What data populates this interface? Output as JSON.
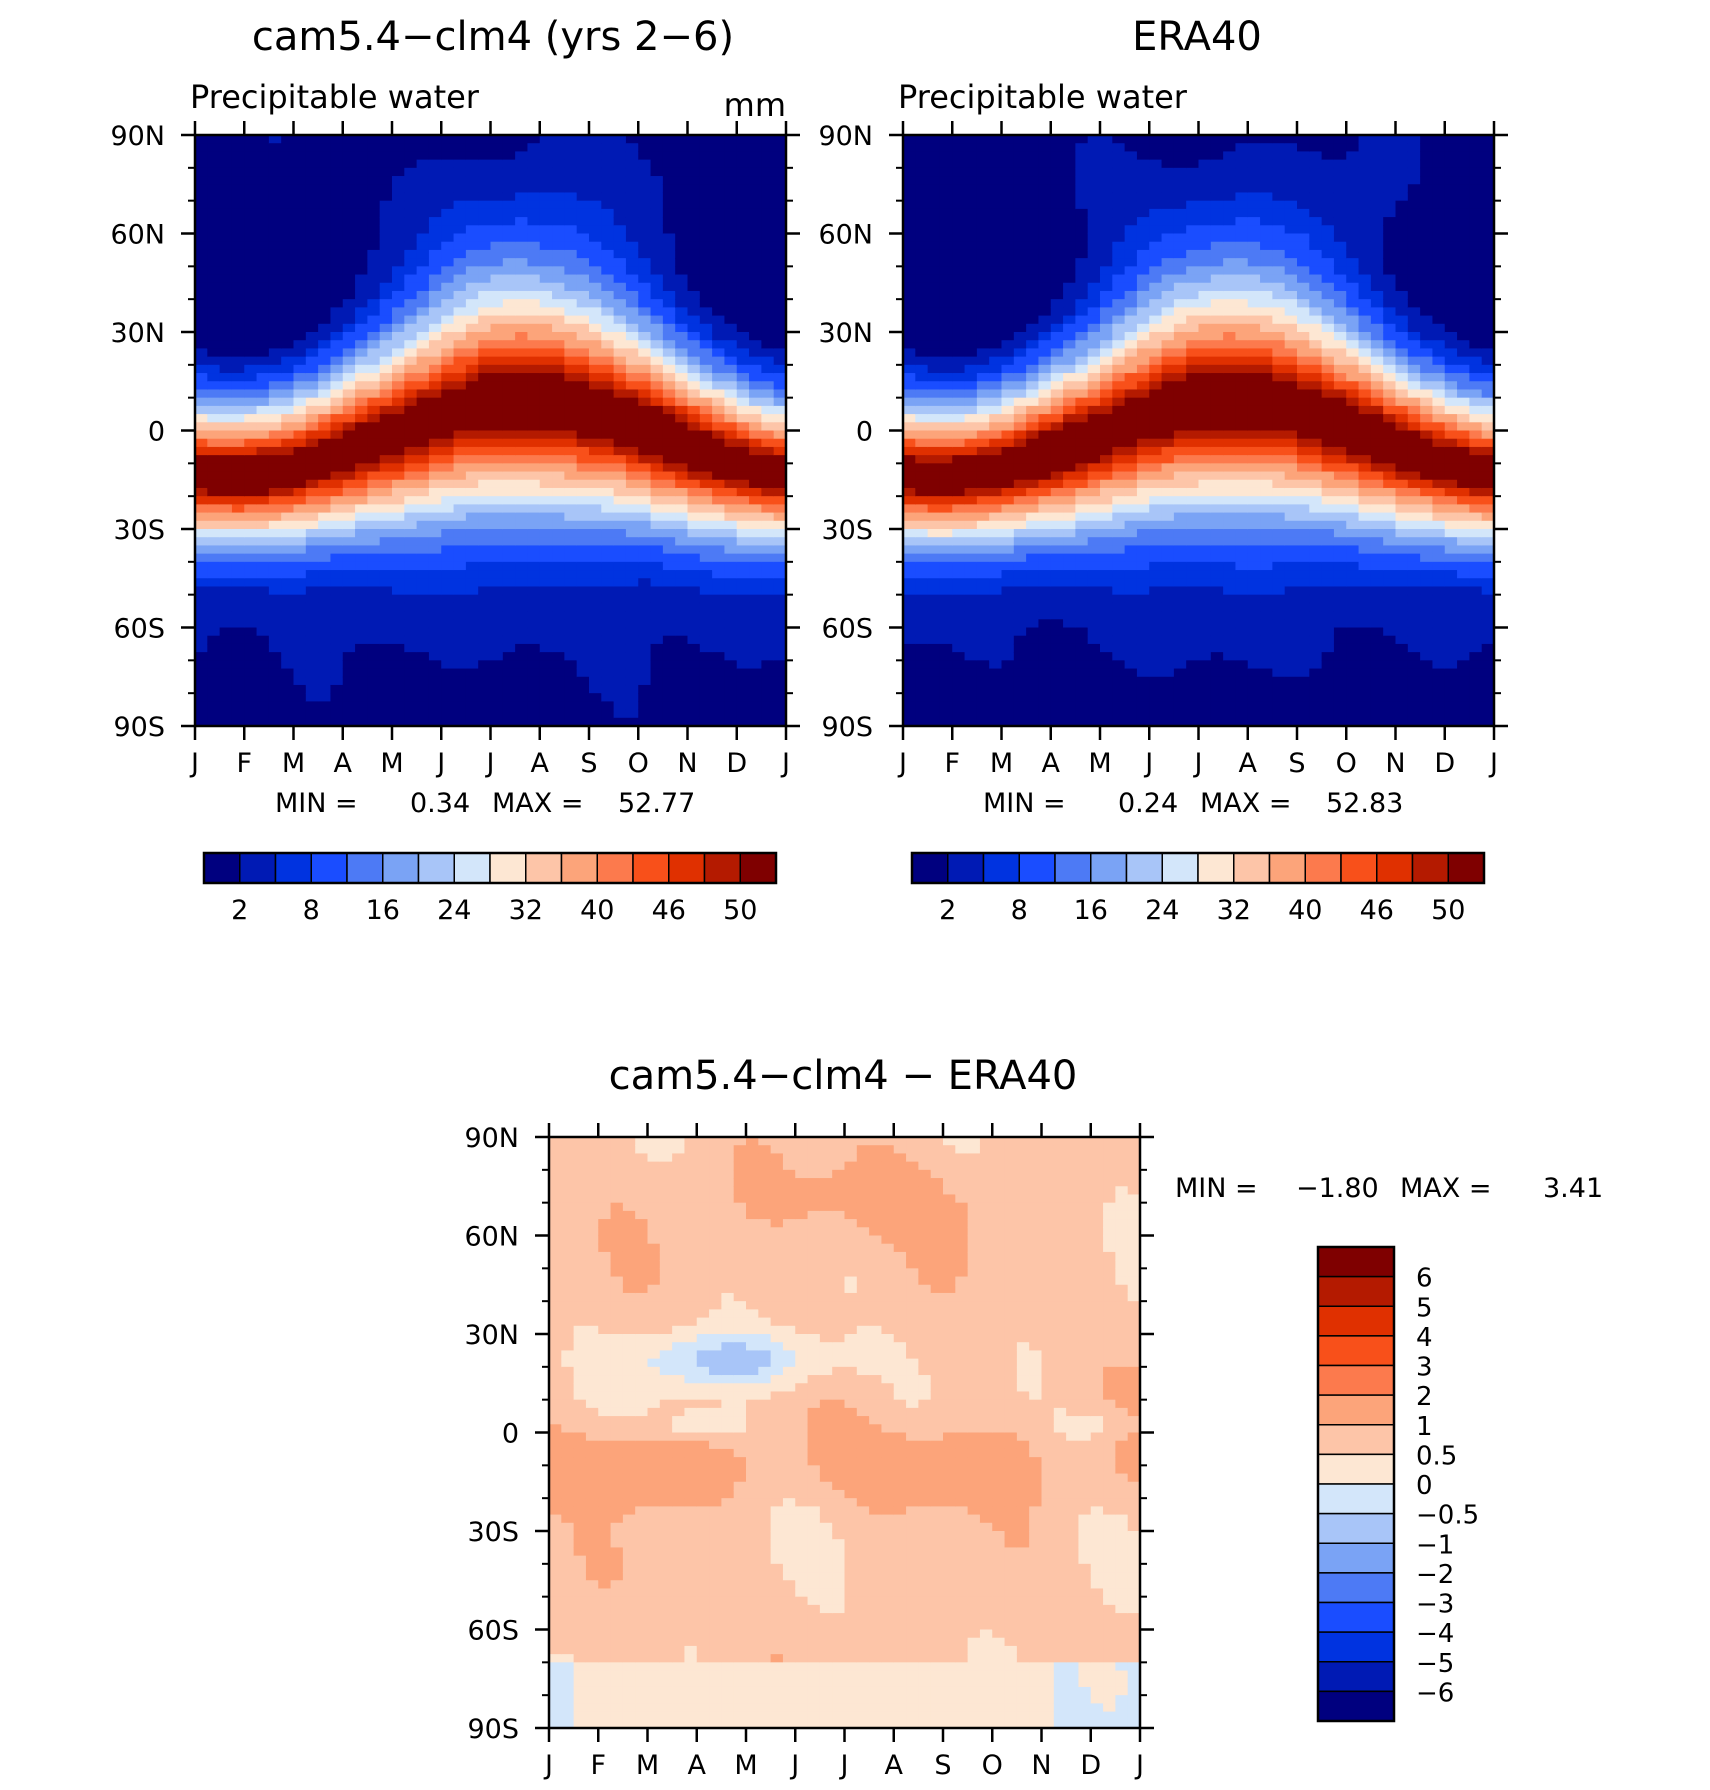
{
  "chart_data": [
    {
      "type": "heatmap",
      "title": "cam5.4−clm4 (yrs 2−6)",
      "subtitle": "Precipitable water",
      "units": "mm",
      "x_ticks": [
        "J",
        "F",
        "M",
        "A",
        "M",
        "J",
        "J",
        "A",
        "S",
        "O",
        "N",
        "D",
        "J"
      ],
      "y_ticks": [
        "90N",
        "60N",
        "30N",
        "0",
        "30S",
        "60S",
        "90S"
      ],
      "stats": {
        "min_label": "MIN =",
        "min": "0.34",
        "max_label": "MAX =",
        "max": "52.77"
      },
      "colorbar": {
        "orientation": "horizontal",
        "colors": [
          "#00007f",
          "#001ab4",
          "#0033e0",
          "#1a4dff",
          "#4d7af5",
          "#7aa3f5",
          "#a8c5f8",
          "#d3e6fa",
          "#fde7d3",
          "#fdc5a8",
          "#fca47a",
          "#fc7a4d",
          "#f8501a",
          "#e03000",
          "#b41a00",
          "#7f0000"
        ],
        "labels": [
          "2",
          "8",
          "16",
          "24",
          "32",
          "40",
          "46",
          "50"
        ]
      },
      "field": {
        "type": "seasonal_zonal",
        "equator_max": 52.77,
        "pole_min": 0.34
      }
    },
    {
      "type": "heatmap",
      "title": "ERA40",
      "subtitle": "Precipitable water",
      "x_ticks": [
        "J",
        "F",
        "M",
        "A",
        "M",
        "J",
        "J",
        "A",
        "S",
        "O",
        "N",
        "D",
        "J"
      ],
      "y_ticks": [
        "90N",
        "60N",
        "30N",
        "0",
        "30S",
        "60S",
        "90S"
      ],
      "stats": {
        "min_label": "MIN =",
        "min": "0.24",
        "max_label": "MAX =",
        "max": "52.83"
      },
      "colorbar": {
        "orientation": "horizontal",
        "colors": [
          "#00007f",
          "#001ab4",
          "#0033e0",
          "#1a4dff",
          "#4d7af5",
          "#7aa3f5",
          "#a8c5f8",
          "#d3e6fa",
          "#fde7d3",
          "#fdc5a8",
          "#fca47a",
          "#fc7a4d",
          "#f8501a",
          "#e03000",
          "#b41a00",
          "#7f0000"
        ],
        "labels": [
          "2",
          "8",
          "16",
          "24",
          "32",
          "40",
          "46",
          "50"
        ]
      },
      "field": {
        "type": "seasonal_zonal",
        "equator_max": 52.83,
        "pole_min": 0.24
      }
    },
    {
      "type": "heatmap",
      "title": "cam5.4−clm4 − ERA40",
      "x_ticks": [
        "J",
        "F",
        "M",
        "A",
        "M",
        "J",
        "J",
        "A",
        "S",
        "O",
        "N",
        "D",
        "J"
      ],
      "y_ticks": [
        "90N",
        "60N",
        "30N",
        "0",
        "30S",
        "60S",
        "90S"
      ],
      "stats": {
        "min_label": "MIN =",
        "min": "−1.80",
        "max_label": "MAX =",
        "max": "3.41"
      },
      "colorbar": {
        "orientation": "vertical",
        "colors_top_to_bottom": [
          "#7f0000",
          "#b41a00",
          "#e03000",
          "#f8501a",
          "#fc7a4d",
          "#fca47a",
          "#fdc5a8",
          "#fde7d3",
          "#d3e6fa",
          "#a8c5f8",
          "#7aa3f5",
          "#4d7af5",
          "#1a4dff",
          "#0033e0",
          "#001ab4",
          "#00007f"
        ],
        "labels_top_to_bottom": [
          "6",
          "5",
          "4",
          "3",
          "2",
          "1",
          "0.5",
          "0",
          "−0.5",
          "−1",
          "−2",
          "−3",
          "−4",
          "−5",
          "−6"
        ]
      },
      "field": {
        "type": "difference",
        "min": -1.8,
        "max": 3.41
      }
    }
  ]
}
